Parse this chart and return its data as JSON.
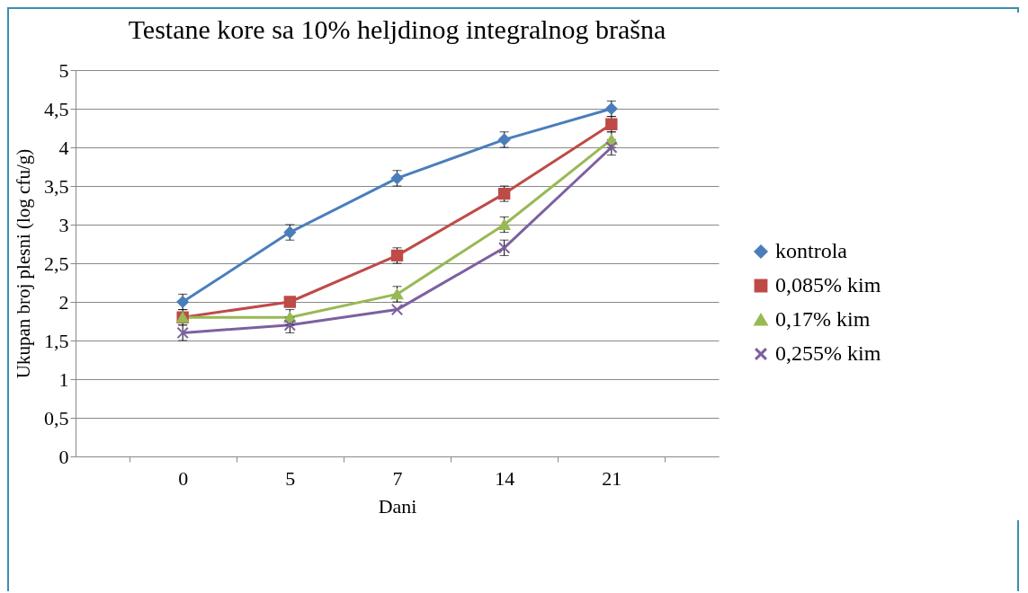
{
  "chart_data": {
    "type": "line",
    "title": "Testane kore sa 10% heljdinog integralnog brašna",
    "xlabel": "Dani",
    "ylabel": "Ukupan broj plesni (log cfu/g)",
    "categories": [
      "0",
      "5",
      "7",
      "14",
      "21"
    ],
    "series": [
      {
        "name": "kontrola",
        "color": "#4a7ebb",
        "marker": "diamond",
        "values": [
          2.0,
          2.9,
          3.6,
          4.1,
          4.5
        ],
        "errors": [
          0.1,
          0.1,
          0.1,
          0.1,
          0.1
        ]
      },
      {
        "name": "0,085% kim",
        "color": "#be4b48",
        "marker": "square",
        "values": [
          1.8,
          2.0,
          2.6,
          3.4,
          4.3
        ],
        "errors": [
          0.1,
          null,
          0.1,
          0.1,
          0.1
        ]
      },
      {
        "name": "0,17% kim",
        "color": "#98b954",
        "marker": "triangle",
        "values": [
          1.8,
          1.8,
          2.1,
          3.0,
          4.1
        ],
        "errors": [
          null,
          0.1,
          0.1,
          0.1,
          0.1
        ]
      },
      {
        "name": "0,255% kim",
        "color": "#7d60a0",
        "marker": "cross",
        "values": [
          1.6,
          1.7,
          1.9,
          2.7,
          4.0
        ],
        "errors": [
          0.1,
          0.1,
          null,
          0.1,
          0.1
        ]
      }
    ],
    "ylim": [
      0,
      5
    ],
    "yticks": [
      0,
      {
        "value": 0.5,
        "label": "0,5"
      },
      1,
      {
        "value": 1.5,
        "label": "1,5"
      },
      2,
      {
        "value": 2.5,
        "label": "2,5"
      },
      3,
      {
        "value": 3.5,
        "label": "3,5"
      },
      4,
      {
        "value": 4.5,
        "label": "4,5"
      },
      5
    ],
    "grid": "y",
    "legend": "right",
    "line_style": "solid"
  }
}
